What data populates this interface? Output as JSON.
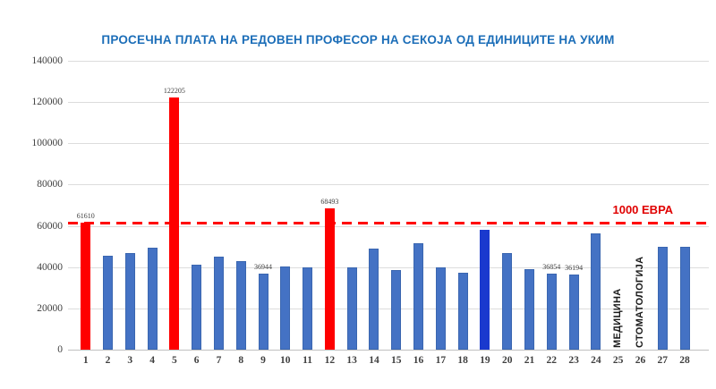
{
  "title": {
    "text": "ПРОСЕЧНА ПЛАТА НА РЕДОВЕН ПРОФЕСОР НА СЕКОЈА ОД ЕДИНИЦИТЕ НА УКИМ",
    "color": "#1C6EB8"
  },
  "chart_data": {
    "type": "bar",
    "categories": [
      "1",
      "2",
      "3",
      "4",
      "5",
      "6",
      "7",
      "8",
      "9",
      "10",
      "11",
      "12",
      "13",
      "14",
      "15",
      "16",
      "17",
      "18",
      "19",
      "20",
      "21",
      "22",
      "23",
      "24",
      "25",
      "26",
      "27",
      "28"
    ],
    "values": [
      61610,
      45400,
      46800,
      49400,
      122205,
      41100,
      44900,
      42800,
      36944,
      40400,
      39900,
      68493,
      39900,
      49000,
      38500,
      51500,
      39900,
      37200,
      58000,
      46800,
      39200,
      36854,
      36194,
      56400,
      0,
      0,
      50000,
      49700
    ],
    "title": "ПРОСЕЧНА ПЛАТА НА РЕДОВЕН ПРОФЕСОР НА СЕКОЈА ОД ЕДИНИЦИТЕ НА УКИМ",
    "xlabel": "",
    "ylabel": "",
    "ylim": [
      0,
      140000
    ],
    "y_ticks": [
      0,
      20000,
      40000,
      60000,
      80000,
      100000,
      120000,
      140000
    ],
    "grid": true,
    "legend": "none",
    "bar_color_default": "#4472C4",
    "bar_border_default": "#3A66B0",
    "red_bar_color": "#FE0000",
    "dark_blue_bar_color": "#1A39CE",
    "red_bars": [
      1,
      5,
      12
    ],
    "dark_blue_bars": [
      19
    ],
    "data_labels": {
      "1": "61610",
      "5": "122205",
      "9": "36944",
      "12": "68493",
      "22": "36854",
      "23": "36194"
    },
    "reference_line": {
      "value": 61500,
      "label": "1000 ЕВРА",
      "color": "#FF0000",
      "style": "dashed"
    },
    "annotations": [
      {
        "slot": 25,
        "text": "МЕДИЦИНА"
      },
      {
        "slot": 26,
        "text": "СТОМАТОЛОГИЈА"
      }
    ]
  }
}
